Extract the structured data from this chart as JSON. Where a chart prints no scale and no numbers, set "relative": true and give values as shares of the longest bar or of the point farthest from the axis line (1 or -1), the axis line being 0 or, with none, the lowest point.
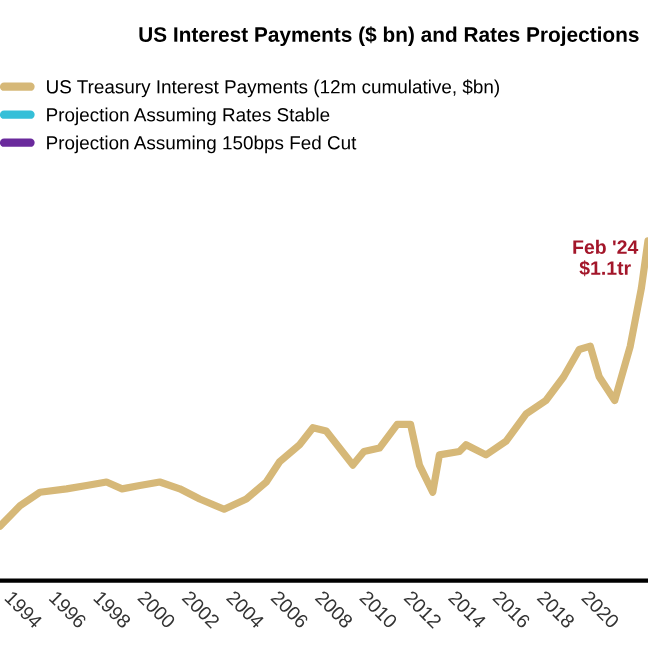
{
  "chart_data": {
    "type": "line",
    "title": "US Interest Payments ($ bn) and Rates Projections",
    "relative": true,
    "xlim": [
      1993.4,
      2022.6
    ],
    "xticks": [
      1994,
      1996,
      1998,
      2000,
      2002,
      2004,
      2006,
      2008,
      2010,
      2012,
      2014,
      2016,
      2018,
      2020
    ],
    "legend": "top left",
    "grid": false,
    "annotations": [
      "Feb '24\n$1.1tr"
    ],
    "series": [
      {
        "name": "US Treasury Interest Payments (12m cumulative, $bn)",
        "color": "#d6b878",
        "x": [
          1993.4,
          1994.3,
          1995.2,
          1996.4,
          1997.3,
          1998.2,
          1998.9,
          1999.7,
          2000.6,
          2001.5,
          2002.4,
          2003.5,
          2004.5,
          2005.4,
          2006.0,
          2006.9,
          2007.5,
          2008.1,
          2008.7,
          2009.3,
          2009.8,
          2010.5,
          2011.3,
          2011.9,
          2012.3,
          2012.9,
          2013.2,
          2014.1,
          2014.4,
          2015.3,
          2016.2,
          2017.1,
          2018.0,
          2018.8,
          2019.5,
          2020.0,
          2020.4,
          2021.1,
          2021.8,
          2022.3,
          2022.6
        ],
        "values": [
          0.16,
          0.22,
          0.26,
          0.27,
          0.28,
          0.29,
          0.27,
          0.28,
          0.29,
          0.27,
          0.24,
          0.21,
          0.24,
          0.29,
          0.35,
          0.4,
          0.45,
          0.44,
          0.39,
          0.34,
          0.38,
          0.39,
          0.46,
          0.46,
          0.34,
          0.26,
          0.37,
          0.38,
          0.4,
          0.37,
          0.41,
          0.49,
          0.53,
          0.6,
          0.68,
          0.69,
          0.6,
          0.53,
          0.69,
          0.86,
          1.0
        ]
      },
      {
        "name": "Projection Assuming Rates Stable",
        "color": "#35bfd8"
      },
      {
        "name": "Projection Assuming 150bps Fed Cut",
        "color": "#6a2a9c"
      }
    ]
  }
}
